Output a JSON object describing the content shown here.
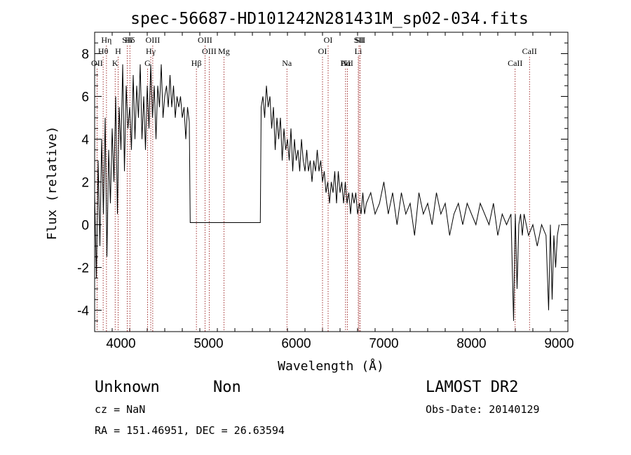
{
  "chart_data": {
    "type": "line",
    "title": "spec-56687-HD101242N281431M_sp02-034.fits",
    "xlabel": "Wavelength (Å)",
    "ylabel": "Flux (relative)",
    "xlim": [
      3700,
      9100
    ],
    "ylim": [
      -5,
      9
    ],
    "xticks": [
      4000,
      5000,
      6000,
      7000,
      8000,
      9000
    ],
    "yticks": [
      -4,
      -2,
      0,
      2,
      4,
      6,
      8
    ],
    "grid": false,
    "spectral_lines": [
      {
        "label": "Hη",
        "wavelength": 3835
      },
      {
        "label": "Hθ",
        "wavelength": 3797
      },
      {
        "label": "OII",
        "wavelength": 3727
      },
      {
        "label": "SII",
        "wavelength": 4072
      },
      {
        "label": "H",
        "wavelength": 3968
      },
      {
        "label": "K",
        "wavelength": 3934
      },
      {
        "label": "Hδ",
        "wavelength": 4102
      },
      {
        "label": "Hγ",
        "wavelength": 4340
      },
      {
        "label": "G",
        "wavelength": 4304
      },
      {
        "label": "OIII",
        "wavelength": 4363
      },
      {
        "label": "OIII",
        "wavelength": 5007
      },
      {
        "label": "Hβ",
        "wavelength": 4861
      },
      {
        "label": "OIII",
        "wavelength": 4959
      },
      {
        "label": "Mg",
        "wavelength": 5175
      },
      {
        "label": "Na",
        "wavelength": 5894
      },
      {
        "label": "OI",
        "wavelength": 6364
      },
      {
        "label": "OI",
        "wavelength": 6300
      },
      {
        "label": "Hα",
        "wavelength": 6563
      },
      {
        "label": "SII",
        "wavelength": 6716
      },
      {
        "label": "Li",
        "wavelength": 6708
      },
      {
        "label": "NII",
        "wavelength": 6584
      },
      {
        "label": "SII",
        "wavelength": 6731
      },
      {
        "label": "CaII",
        "wavelength": 8662
      },
      {
        "label": "CaII",
        "wavelength": 8498
      }
    ],
    "spectrum": {
      "x": [
        3700,
        3720,
        3740,
        3760,
        3780,
        3800,
        3820,
        3840,
        3860,
        3880,
        3900,
        3920,
        3940,
        3960,
        3980,
        4000,
        4020,
        4040,
        4060,
        4080,
        4100,
        4120,
        4140,
        4160,
        4180,
        4200,
        4220,
        4240,
        4260,
        4280,
        4300,
        4320,
        4340,
        4360,
        4380,
        4400,
        4420,
        4440,
        4460,
        4480,
        4500,
        4520,
        4540,
        4560,
        4580,
        4600,
        4620,
        4640,
        4660,
        4680,
        4700,
        4720,
        4740,
        4760,
        4780,
        4790,
        5000,
        5300,
        5590,
        5600,
        5620,
        5640,
        5660,
        5680,
        5700,
        5720,
        5740,
        5760,
        5780,
        5800,
        5820,
        5840,
        5860,
        5880,
        5900,
        5920,
        5940,
        5960,
        5980,
        6000,
        6020,
        6040,
        6060,
        6080,
        6100,
        6120,
        6140,
        6160,
        6180,
        6200,
        6220,
        6240,
        6260,
        6280,
        6300,
        6320,
        6340,
        6360,
        6380,
        6400,
        6420,
        6440,
        6460,
        6480,
        6500,
        6520,
        6540,
        6560,
        6580,
        6600,
        6620,
        6640,
        6660,
        6680,
        6700,
        6720,
        6740,
        6760,
        6780,
        6800,
        6850,
        6900,
        6950,
        7000,
        7050,
        7100,
        7150,
        7200,
        7250,
        7300,
        7350,
        7400,
        7450,
        7500,
        7550,
        7600,
        7650,
        7700,
        7750,
        7800,
        7850,
        7900,
        7950,
        8000,
        8050,
        8100,
        8150,
        8200,
        8250,
        8300,
        8350,
        8400,
        8450,
        8480,
        8500,
        8520,
        8540,
        8560,
        8580,
        8600,
        8650,
        8700,
        8750,
        8800,
        8850,
        8880,
        8900,
        8920,
        8940,
        8960,
        8980,
        9000
      ],
      "y": [
        1.5,
        -2.5,
        3.0,
        -1.0,
        4.0,
        0.5,
        5.0,
        -1.5,
        3.5,
        1.0,
        4.5,
        2.0,
        6.0,
        0.5,
        5.5,
        3.5,
        7.5,
        2.5,
        6.5,
        4.5,
        5.5,
        3.5,
        7.0,
        4.0,
        6.5,
        5.0,
        7.5,
        4.0,
        6.0,
        3.5,
        6.5,
        4.5,
        7.5,
        5.0,
        6.5,
        4.0,
        6.5,
        5.5,
        7.5,
        5.0,
        6.0,
        6.5,
        5.5,
        7.0,
        5.5,
        6.5,
        5.0,
        6.0,
        5.5,
        6.0,
        5.0,
        5.5,
        4.0,
        5.5,
        4.8,
        0.1,
        0.1,
        0.1,
        0.1,
        5.5,
        6.0,
        5.0,
        6.5,
        5.5,
        6.0,
        4.5,
        5.5,
        3.5,
        5.0,
        4.0,
        5.0,
        3.0,
        4.5,
        3.5,
        4.0,
        3.0,
        4.5,
        2.5,
        4.0,
        3.0,
        3.5,
        2.5,
        4.0,
        3.0,
        2.5,
        3.5,
        2.5,
        3.0,
        2.0,
        3.0,
        2.5,
        3.5,
        2.5,
        3.0,
        2.0,
        2.5,
        1.5,
        2.0,
        1.0,
        2.0,
        1.5,
        2.5,
        1.0,
        2.5,
        1.5,
        2.0,
        1.0,
        2.0,
        1.0,
        1.5,
        0.5,
        1.5,
        1.0,
        1.5,
        0.5,
        1.0,
        0.5,
        1.5,
        0.5,
        1.0,
        1.5,
        0.5,
        1.0,
        2.0,
        0.5,
        1.5,
        0.0,
        1.5,
        0.5,
        1.0,
        -0.5,
        1.5,
        0.5,
        1.0,
        0.0,
        1.5,
        0.5,
        1.0,
        -0.5,
        0.5,
        1.0,
        0.0,
        1.0,
        0.5,
        0.0,
        1.0,
        0.5,
        0.0,
        1.0,
        -0.5,
        0.5,
        0.0,
        0.5,
        -4.5,
        0.5,
        -3.0,
        0.0,
        0.5,
        -0.5,
        0.5,
        -0.5,
        0.0,
        -1.0,
        0.0,
        -0.5,
        -4.0,
        0.0,
        -3.5,
        -0.5,
        -2.0,
        -0.5,
        0.0
      ]
    }
  },
  "title": "spec-56687-HD101242N281431M_sp02-034.fits",
  "info": {
    "class": "Unknown",
    "subclass": "Non",
    "cz": "cz = NaN",
    "radec": "RA = 151.46951, DEC =  26.63594",
    "survey": "LAMOST DR2",
    "obsdate": "Obs-Date: 20140129"
  },
  "colors": {
    "spectrum": "#000000",
    "line_markers": "#8b0000"
  }
}
